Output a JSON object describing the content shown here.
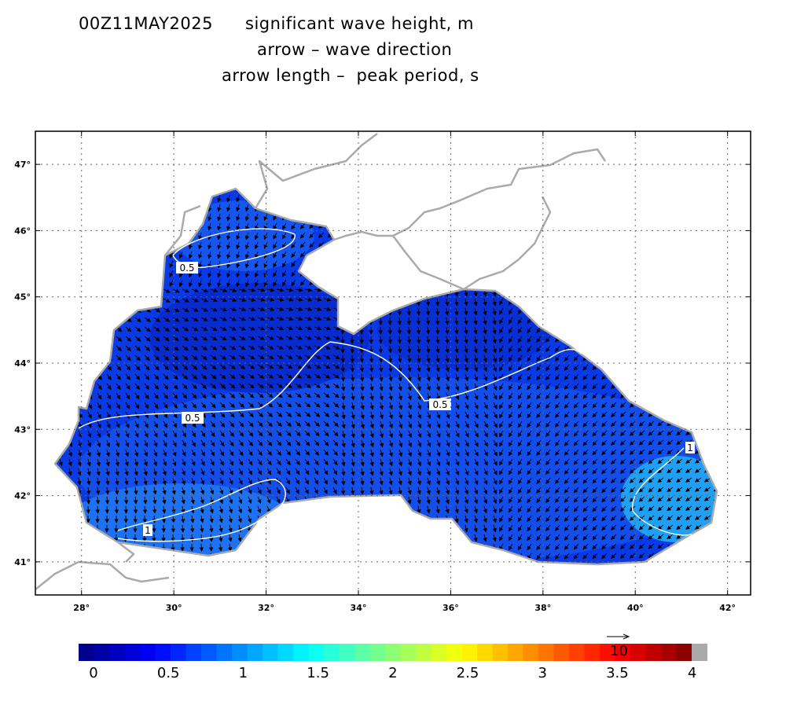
{
  "title": {
    "date": "00Z11MAY2025",
    "line1": "significant wave height, m",
    "line2": "arrow – wave direction",
    "line3": "arrow length –  peak period, s"
  },
  "map": {
    "lon_range": [
      27.0,
      42.5
    ],
    "lat_range": [
      40.5,
      47.5
    ],
    "lon_ticks": [
      "28°",
      "30°",
      "32°",
      "34°",
      "36°",
      "38°",
      "40°",
      "42°"
    ],
    "lat_ticks": [
      "41°",
      "42°",
      "43°",
      "44°",
      "45°",
      "46°",
      "47°"
    ],
    "grid": "dotted",
    "land_color": "#ffffff",
    "coast_color": "#aaaaaa",
    "contours": [
      {
        "label": "0.5",
        "value": 0.5
      },
      {
        "label": "0.5",
        "value": 0.5
      },
      {
        "label": "0.5",
        "value": 0.5
      },
      {
        "label": "1",
        "value": 1
      },
      {
        "label": "1",
        "value": 1
      }
    ]
  },
  "colorbar": {
    "labels": [
      "0",
      "0.5",
      "1",
      "1.5",
      "2",
      "2.5",
      "3",
      "3.5",
      "4"
    ],
    "range": [
      0,
      4
    ],
    "over_color": "#aaaaaa"
  },
  "reference_arrow": {
    "label": "10",
    "units": "s"
  }
}
